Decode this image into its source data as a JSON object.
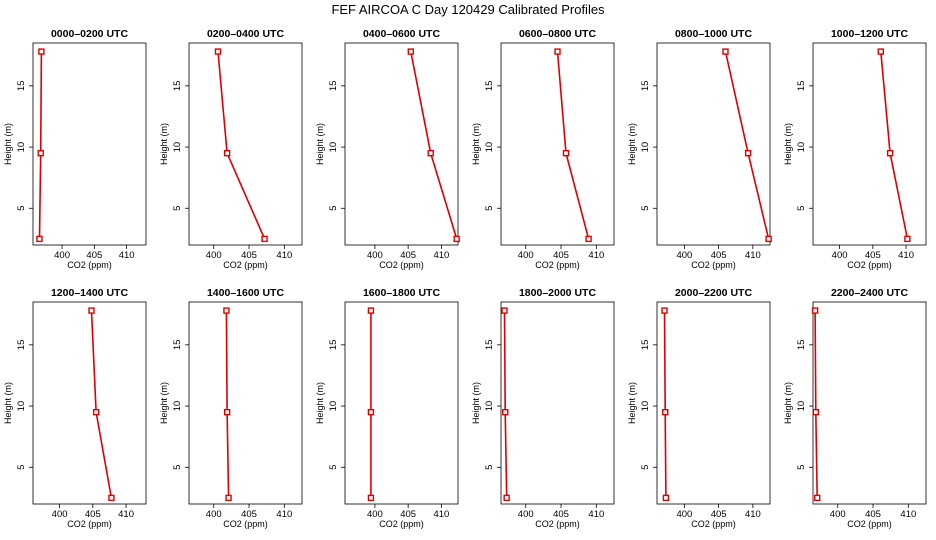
{
  "figure": {
    "title": "FEF  AIRCOA C  Day 120429  Calibrated Profiles"
  },
  "chart_data": [
    {
      "type": "line",
      "title": "0000–0200 UTC",
      "xlabel": "CO2 (ppm)",
      "ylabel": "Height (m)",
      "xlim": [
        395.5,
        413
      ],
      "ylim": [
        2,
        18.5
      ],
      "x_ticks": [
        400,
        405,
        410
      ],
      "y_ticks": [
        5,
        10,
        15
      ],
      "series": [
        {
          "name": "CO2 profile",
          "color": "#dd0000",
          "x": [
            396.5,
            396.7,
            396.8
          ],
          "y": [
            2.5,
            9.5,
            17.8
          ]
        }
      ]
    },
    {
      "type": "line",
      "title": "0200–0400 UTC",
      "xlabel": "CO2 (ppm)",
      "ylabel": "Height (m)",
      "xlim": [
        396.5,
        412.5
      ],
      "ylim": [
        2,
        18.5
      ],
      "x_ticks": [
        400,
        405,
        410
      ],
      "y_ticks": [
        5,
        10,
        15
      ],
      "series": [
        {
          "name": "CO2 profile",
          "color": "#dd0000",
          "x": [
            407.2,
            401.9,
            400.6
          ],
          "y": [
            2.5,
            9.5,
            17.8
          ]
        }
      ]
    },
    {
      "type": "line",
      "title": "0400–0600 UTC",
      "xlabel": "CO2 (ppm)",
      "ylabel": "Height (m)",
      "xlim": [
        395.5,
        412.5
      ],
      "ylim": [
        2,
        18.5
      ],
      "x_ticks": [
        400,
        405,
        410
      ],
      "y_ticks": [
        5,
        10,
        15
      ],
      "series": [
        {
          "name": "CO2 profile",
          "color": "#dd0000",
          "x": [
            412.3,
            408.4,
            405.4
          ],
          "y": [
            2.5,
            9.5,
            17.8
          ]
        }
      ]
    },
    {
      "type": "line",
      "title": "0600–0800 UTC",
      "xlabel": "CO2 (ppm)",
      "ylabel": "Height (m)",
      "xlim": [
        396.5,
        412.5
      ],
      "ylim": [
        2,
        18.5
      ],
      "x_ticks": [
        400,
        405,
        410
      ],
      "y_ticks": [
        5,
        10,
        15
      ],
      "series": [
        {
          "name": "CO2 profile",
          "color": "#dd0000",
          "x": [
            408.9,
            405.7,
            404.5
          ],
          "y": [
            2.5,
            9.5,
            17.8
          ]
        }
      ]
    },
    {
      "type": "line",
      "title": "0800–1000 UTC",
      "xlabel": "CO2 (ppm)",
      "ylabel": "Height (m)",
      "xlim": [
        396,
        412.5
      ],
      "ylim": [
        2,
        18.5
      ],
      "x_ticks": [
        400,
        405,
        410
      ],
      "y_ticks": [
        5,
        10,
        15
      ],
      "series": [
        {
          "name": "CO2 profile",
          "color": "#dd0000",
          "x": [
            412.3,
            409.3,
            406
          ],
          "y": [
            2.5,
            9.5,
            17.8
          ]
        }
      ]
    },
    {
      "type": "line",
      "title": "1000–1200 UTC",
      "xlabel": "CO2 (ppm)",
      "ylabel": "Height (m)",
      "xlim": [
        396,
        413
      ],
      "ylim": [
        2,
        18.5
      ],
      "x_ticks": [
        400,
        405,
        410
      ],
      "y_ticks": [
        5,
        10,
        15
      ],
      "series": [
        {
          "name": "CO2 profile",
          "color": "#dd0000",
          "x": [
            410.2,
            407.6,
            406.2
          ],
          "y": [
            2.5,
            9.5,
            17.8
          ]
        }
      ]
    },
    {
      "type": "line",
      "title": "1200–1400 UTC",
      "xlabel": "CO2 (ppm)",
      "ylabel": "Height (m)",
      "xlim": [
        396,
        413
      ],
      "ylim": [
        2,
        18.5
      ],
      "x_ticks": [
        400,
        405,
        410
      ],
      "y_ticks": [
        5,
        10,
        15
      ],
      "series": [
        {
          "name": "CO2 profile",
          "color": "#dd0000",
          "x": [
            407.8,
            405.5,
            404.8
          ],
          "y": [
            2.5,
            9.5,
            17.8
          ]
        }
      ]
    },
    {
      "type": "line",
      "title": "1400–1600 UTC",
      "xlabel": "CO2 (ppm)",
      "ylabel": "Height (m)",
      "xlim": [
        396.5,
        412.5
      ],
      "ylim": [
        2,
        18.5
      ],
      "x_ticks": [
        400,
        405,
        410
      ],
      "y_ticks": [
        5,
        10,
        15
      ],
      "series": [
        {
          "name": "CO2 profile",
          "color": "#dd0000",
          "x": [
            402.1,
            401.9,
            401.8
          ],
          "y": [
            2.5,
            9.5,
            17.8
          ]
        }
      ]
    },
    {
      "type": "line",
      "title": "1600–1800 UTC",
      "xlabel": "CO2 (ppm)",
      "ylabel": "Height (m)",
      "xlim": [
        395.5,
        412.5
      ],
      "ylim": [
        2,
        18.5
      ],
      "x_ticks": [
        400,
        405,
        410
      ],
      "y_ticks": [
        5,
        10,
        15
      ],
      "series": [
        {
          "name": "CO2 profile",
          "color": "#dd0000",
          "x": [
            399.4,
            399.4,
            399.4
          ],
          "y": [
            2.5,
            9.5,
            17.8
          ]
        }
      ]
    },
    {
      "type": "line",
      "title": "1800–2000 UTC",
      "xlabel": "CO2 (ppm)",
      "ylabel": "Height (m)",
      "xlim": [
        396.5,
        412.5
      ],
      "ylim": [
        2,
        18.5
      ],
      "x_ticks": [
        400,
        405,
        410
      ],
      "y_ticks": [
        5,
        10,
        15
      ],
      "series": [
        {
          "name": "CO2 profile",
          "color": "#dd0000",
          "x": [
            397.3,
            397.1,
            397
          ],
          "y": [
            2.5,
            9.5,
            17.8
          ]
        }
      ]
    },
    {
      "type": "line",
      "title": "2000–2200 UTC",
      "xlabel": "CO2 (ppm)",
      "ylabel": "Height (m)",
      "xlim": [
        396,
        412.5
      ],
      "ylim": [
        2,
        18.5
      ],
      "x_ticks": [
        400,
        405,
        410
      ],
      "y_ticks": [
        5,
        10,
        15
      ],
      "series": [
        {
          "name": "CO2 profile",
          "color": "#dd0000",
          "x": [
            397.3,
            397.2,
            397.1
          ],
          "y": [
            2.5,
            9.5,
            17.8
          ]
        }
      ]
    },
    {
      "type": "line",
      "title": "2200–2400 UTC",
      "xlabel": "CO2 (ppm)",
      "ylabel": "Height (m)",
      "xlim": [
        396.5,
        412.5
      ],
      "ylim": [
        2,
        18.5
      ],
      "x_ticks": [
        400,
        405,
        410
      ],
      "y_ticks": [
        5,
        10,
        15
      ],
      "series": [
        {
          "name": "CO2 profile",
          "color": "#dd0000",
          "x": [
            397.1,
            396.9,
            396.8
          ],
          "y": [
            2.5,
            9.5,
            17.8
          ]
        }
      ]
    }
  ]
}
